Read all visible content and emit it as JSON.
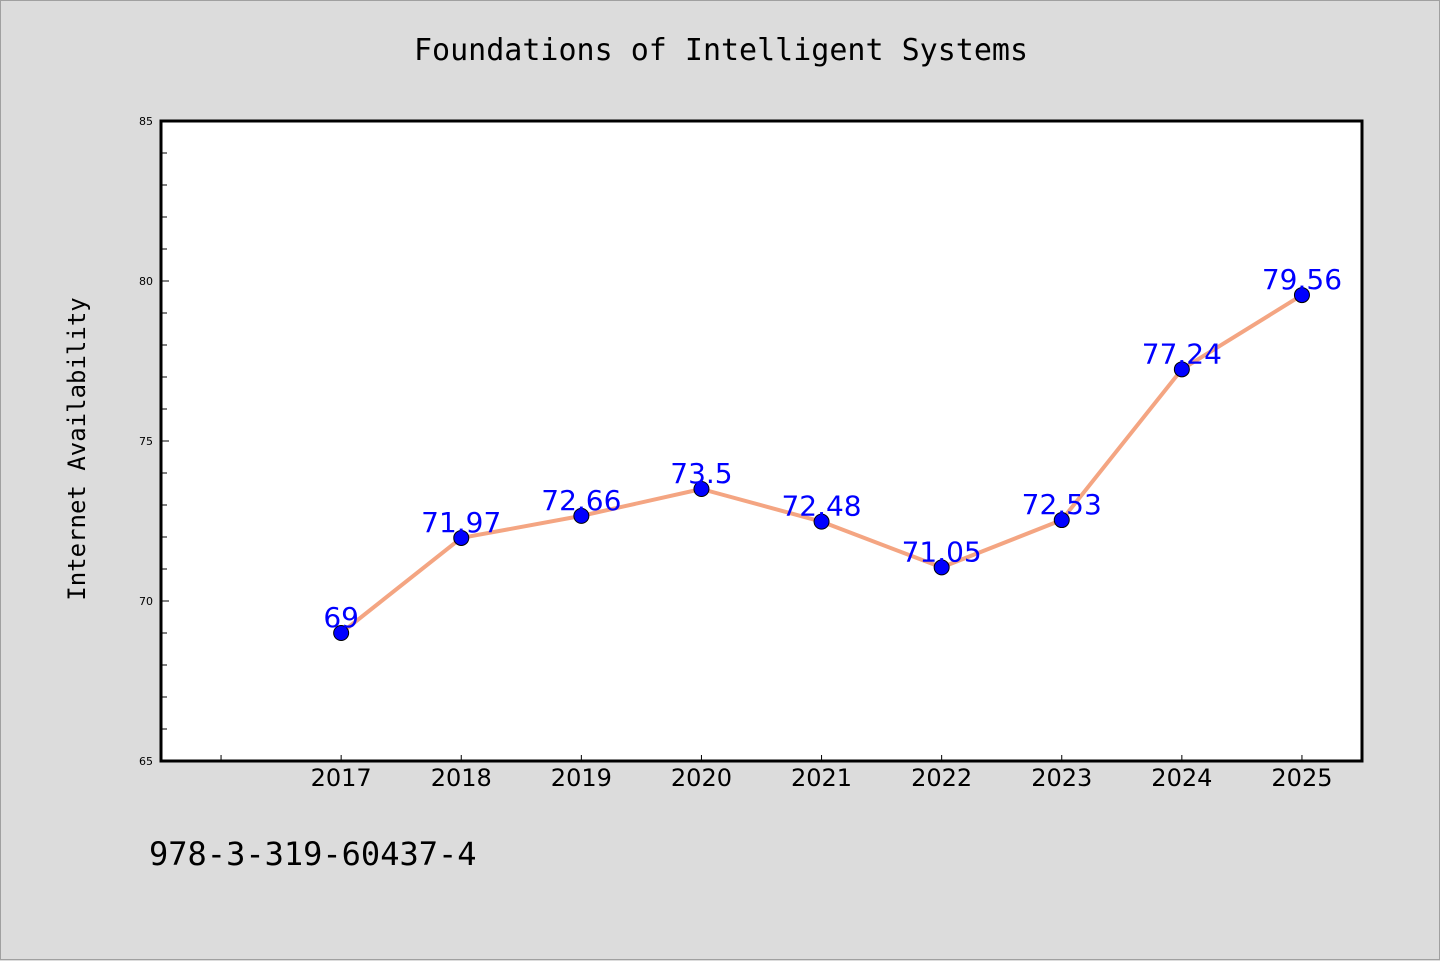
{
  "chart_data": {
    "type": "line",
    "title": "Foundations of Intelligent Systems",
    "xlabel": "",
    "ylabel": "Internet Availability",
    "x": [
      "2017",
      "2018",
      "2019",
      "2020",
      "2021",
      "2022",
      "2023",
      "2024",
      "2025"
    ],
    "series": [
      {
        "values": [
          69,
          71.97,
          72.66,
          73.5,
          72.48,
          71.05,
          72.53,
          77.24,
          79.56
        ]
      }
    ],
    "data_labels": [
      "69",
      "71.97",
      "72.66",
      "73.5",
      "72.48",
      "71.05",
      "72.53",
      "77.24",
      "79.56"
    ],
    "ylim": [
      65,
      85
    ],
    "yticks": [
      65,
      70,
      75,
      80,
      85
    ],
    "xlim": [
      2015.5,
      2025.5
    ],
    "grid": false,
    "line_color": "#f4a582",
    "marker_color": "#0000ff",
    "label_color": "#0000ff",
    "background": "#dcdcdc"
  },
  "footer_text": "978-3-319-60437-4"
}
